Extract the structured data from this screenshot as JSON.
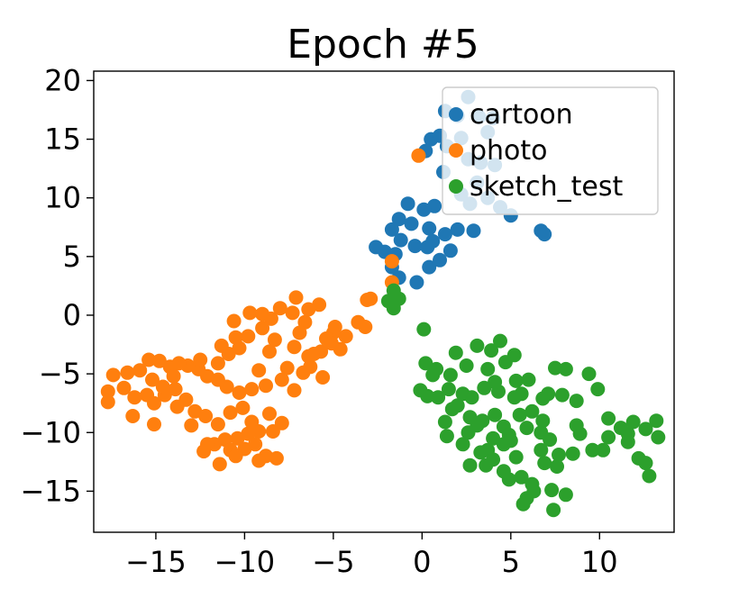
{
  "chart_data": {
    "type": "scatter",
    "title": "Epoch #5",
    "xlabel": "",
    "ylabel": "",
    "xlim": [
      -18.5,
      14.2
    ],
    "ylim": [
      -18.5,
      20.8
    ],
    "xticks": [
      -15,
      -10,
      -5,
      0,
      5,
      10
    ],
    "xtick_labels": [
      "−15",
      "−10",
      "−5",
      "0",
      "5",
      "10"
    ],
    "yticks": [
      -15,
      -10,
      -5,
      0,
      5,
      10,
      15,
      20
    ],
    "ytick_labels": [
      "−15",
      "−10",
      "−5",
      "0",
      "5",
      "10",
      "15",
      "20"
    ],
    "grid": false,
    "legend_position": "upper-right",
    "series": [
      {
        "name": "cartoon",
        "color": "#1f77b4",
        "points": [
          [
            2.6,
            18.6
          ],
          [
            1.3,
            17.4
          ],
          [
            2.0,
            17.0
          ],
          [
            3.2,
            16.9
          ],
          [
            4.0,
            16.8
          ],
          [
            0.5,
            15.0
          ],
          [
            1.0,
            15.3
          ],
          [
            2.2,
            15.1
          ],
          [
            3.7,
            15.6
          ],
          [
            0.2,
            14.0
          ],
          [
            1.4,
            14.4
          ],
          [
            2.6,
            13.3
          ],
          [
            3.3,
            13.0
          ],
          [
            4.1,
            12.8
          ],
          [
            1.2,
            12.2
          ],
          [
            3.1,
            11.3
          ],
          [
            2.2,
            10.3
          ],
          [
            3.7,
            10.0
          ],
          [
            4.4,
            9.2
          ],
          [
            5.0,
            8.5
          ],
          [
            2.7,
            9.5
          ],
          [
            0.7,
            9.3
          ],
          [
            -0.8,
            9.5
          ],
          [
            0.1,
            9.0
          ],
          [
            -1.3,
            8.2
          ],
          [
            -0.6,
            7.8
          ],
          [
            -1.7,
            7.3
          ],
          [
            -1.2,
            6.4
          ],
          [
            0.4,
            7.4
          ],
          [
            1.3,
            6.9
          ],
          [
            2.0,
            7.3
          ],
          [
            2.9,
            7.2
          ],
          [
            -2.1,
            5.4
          ],
          [
            -2.6,
            5.8
          ],
          [
            -1.5,
            5.2
          ],
          [
            -0.4,
            5.9
          ],
          [
            0.3,
            5.8
          ],
          [
            0.6,
            6.3
          ],
          [
            -1.7,
            4.1
          ],
          [
            0.4,
            4.1
          ],
          [
            1.0,
            4.7
          ],
          [
            1.6,
            5.5
          ],
          [
            -0.3,
            2.8
          ],
          [
            -1.3,
            3.2
          ],
          [
            6.7,
            7.2
          ],
          [
            6.9,
            6.9
          ]
        ]
      },
      {
        "name": "photo",
        "color": "#ff7f0e",
        "points": [
          [
            -0.2,
            13.6
          ],
          [
            -1.7,
            4.6
          ],
          [
            -1.7,
            2.8
          ],
          [
            -2.9,
            1.4
          ],
          [
            -3.1,
            1.3
          ],
          [
            -5.0,
            -1.5
          ],
          [
            -5.4,
            -2.0
          ],
          [
            -5.7,
            -3.1
          ],
          [
            -6.4,
            -3.5
          ],
          [
            -7.1,
            1.5
          ],
          [
            -7.3,
            0.2
          ],
          [
            -6.6,
            -0.6
          ],
          [
            -5.8,
            0.9
          ],
          [
            -8.0,
            0.6
          ],
          [
            -8.5,
            -0.3
          ],
          [
            -9.0,
            -1.1
          ],
          [
            -9.8,
            -1.8
          ],
          [
            -10.3,
            -2.8
          ],
          [
            -10.9,
            -3.3
          ],
          [
            -11.5,
            -4.1
          ],
          [
            -9.7,
            0.2
          ],
          [
            -10.6,
            -0.5
          ],
          [
            -8.3,
            -2.1
          ],
          [
            -8.6,
            -3.1
          ],
          [
            -9.2,
            -4.7
          ],
          [
            -7.6,
            -4.5
          ],
          [
            -7.2,
            -6.4
          ],
          [
            -6.3,
            -4.4
          ],
          [
            -5.6,
            -5.3
          ],
          [
            -4.6,
            -2.9
          ],
          [
            -3.6,
            -0.6
          ],
          [
            -3.2,
            -1.0
          ],
          [
            -6.1,
            -3.3
          ],
          [
            -6.7,
            -4.9
          ],
          [
            -7.9,
            -5.5
          ],
          [
            -8.8,
            -6.0
          ],
          [
            -9.6,
            -6.3
          ],
          [
            -10.3,
            -6.6
          ],
          [
            -11.0,
            -6.1
          ],
          [
            -11.5,
            -5.5
          ],
          [
            -12.1,
            -5.2
          ],
          [
            -12.6,
            -4.6
          ],
          [
            -13.2,
            -4.3
          ],
          [
            -13.7,
            -4.1
          ],
          [
            -14.2,
            -4.4
          ],
          [
            -14.8,
            -3.9
          ],
          [
            -15.4,
            -3.8
          ],
          [
            -15.9,
            -4.7
          ],
          [
            -16.6,
            -4.9
          ],
          [
            -17.4,
            -5.1
          ],
          [
            -17.7,
            -6.5
          ],
          [
            -16.8,
            -6.2
          ],
          [
            -16.2,
            -7.0
          ],
          [
            -15.5,
            -6.8
          ],
          [
            -15.1,
            -7.5
          ],
          [
            -14.5,
            -6.8
          ],
          [
            -13.9,
            -6.3
          ],
          [
            -13.3,
            -7.2
          ],
          [
            -12.8,
            -8.2
          ],
          [
            -13.8,
            -7.8
          ],
          [
            -12.2,
            -8.6
          ],
          [
            -11.5,
            -9.3
          ],
          [
            -10.8,
            -8.3
          ],
          [
            -10.1,
            -7.9
          ],
          [
            -9.6,
            -9.1
          ],
          [
            -8.6,
            -8.4
          ],
          [
            -7.9,
            -9.2
          ],
          [
            -8.4,
            -9.9
          ],
          [
            -9.2,
            -9.9
          ],
          [
            -9.8,
            -10.1
          ],
          [
            -10.4,
            -10.5
          ],
          [
            -11.1,
            -10.6
          ],
          [
            -11.7,
            -11.0
          ],
          [
            -10.8,
            -11.5
          ],
          [
            -10.0,
            -11.4
          ],
          [
            -9.4,
            -11.0
          ],
          [
            -8.8,
            -12.0
          ],
          [
            -8.2,
            -12.2
          ],
          [
            -9.2,
            -12.4
          ],
          [
            -10.5,
            -12.0
          ],
          [
            -11.4,
            -12.7
          ],
          [
            -12.1,
            -11.0
          ],
          [
            -12.3,
            -11.6
          ],
          [
            -15.1,
            -9.3
          ],
          [
            -17.7,
            -7.4
          ],
          [
            -16.3,
            -8.6
          ],
          [
            -13.0,
            -9.4
          ],
          [
            -14.6,
            -6.1
          ],
          [
            -15.2,
            -5.5
          ],
          [
            -14.0,
            -5.2
          ],
          [
            -12.5,
            -3.8
          ],
          [
            -11.3,
            -2.6
          ],
          [
            -10.5,
            -1.9
          ],
          [
            -9.0,
            0.1
          ],
          [
            -6.4,
            0.5
          ],
          [
            -7.2,
            -2.7
          ],
          [
            -4.9,
            -1.0
          ],
          [
            -4.3,
            -1.8
          ],
          [
            -5.1,
            -2.4
          ],
          [
            -6.9,
            -1.5
          ]
        ]
      },
      {
        "name": "sketch_test",
        "color": "#2ca02c",
        "points": [
          [
            -1.6,
            2.1
          ],
          [
            -1.3,
            1.4
          ],
          [
            -1.6,
            0.6
          ],
          [
            -1.9,
            1.2
          ],
          [
            0.1,
            -1.2
          ],
          [
            1.9,
            -3.2
          ],
          [
            3.1,
            -2.6
          ],
          [
            3.9,
            -3.0
          ],
          [
            4.4,
            -2.2
          ],
          [
            5.2,
            -3.4
          ],
          [
            4.7,
            -4.0
          ],
          [
            3.7,
            -4.6
          ],
          [
            2.5,
            -4.3
          ],
          [
            1.6,
            -5.1
          ],
          [
            0.8,
            -4.6
          ],
          [
            0.2,
            -4.1
          ],
          [
            0.6,
            -5.1
          ],
          [
            -0.1,
            -6.4
          ],
          [
            0.3,
            -6.9
          ],
          [
            0.9,
            -7.0
          ],
          [
            1.5,
            -6.3
          ],
          [
            2.3,
            -6.7
          ],
          [
            2.8,
            -7.0
          ],
          [
            3.5,
            -6.2
          ],
          [
            4.3,
            -6.5
          ],
          [
            5.2,
            -7.0
          ],
          [
            5.6,
            -6.7
          ],
          [
            6.0,
            -5.5
          ],
          [
            5.3,
            -5.6
          ],
          [
            4.1,
            -5.7
          ],
          [
            2.0,
            -7.7
          ],
          [
            1.3,
            -9.1
          ],
          [
            2.7,
            -8.7
          ],
          [
            3.4,
            -9.0
          ],
          [
            4.1,
            -8.5
          ],
          [
            4.6,
            -9.5
          ],
          [
            5.5,
            -8.5
          ],
          [
            6.2,
            -8.2
          ],
          [
            6.8,
            -7.1
          ],
          [
            7.1,
            -6.7
          ],
          [
            7.5,
            -4.5
          ],
          [
            8.1,
            -4.6
          ],
          [
            9.4,
            -5.0
          ],
          [
            9.9,
            -6.3
          ],
          [
            8.7,
            -7.3
          ],
          [
            7.9,
            -6.8
          ],
          [
            6.8,
            -9.0
          ],
          [
            7.2,
            -10.6
          ],
          [
            6.7,
            -11.5
          ],
          [
            7.7,
            -11.9
          ],
          [
            8.5,
            -11.8
          ],
          [
            8.7,
            -9.4
          ],
          [
            8.9,
            -10.1
          ],
          [
            10.5,
            -8.8
          ],
          [
            11.2,
            -9.6
          ],
          [
            11.6,
            -10.1
          ],
          [
            11.9,
            -9.1
          ],
          [
            12.6,
            -9.7
          ],
          [
            13.2,
            -9.0
          ],
          [
            13.3,
            -10.4
          ],
          [
            12.6,
            -12.6
          ],
          [
            12.2,
            -12.2
          ],
          [
            12.8,
            -13.7
          ],
          [
            11.6,
            -10.8
          ],
          [
            10.5,
            -10.4
          ],
          [
            10.2,
            -11.5
          ],
          [
            9.6,
            -11.5
          ],
          [
            4.6,
            -11.0
          ],
          [
            4.9,
            -10.2
          ],
          [
            4.0,
            -10.5
          ],
          [
            3.7,
            -11.5
          ],
          [
            3.6,
            -12.8
          ],
          [
            5.3,
            -12.1
          ],
          [
            4.6,
            -13.3
          ],
          [
            3.3,
            -11.7
          ],
          [
            2.3,
            -11.0
          ],
          [
            1.4,
            -10.3
          ],
          [
            3.1,
            -9.4
          ],
          [
            2.7,
            -12.8
          ],
          [
            4.9,
            -14.0
          ],
          [
            5.6,
            -13.8
          ],
          [
            6.2,
            -14.4
          ],
          [
            6.9,
            -12.6
          ],
          [
            7.6,
            -12.9
          ],
          [
            6.3,
            -15.0
          ],
          [
            5.9,
            -15.6
          ],
          [
            5.7,
            -16.1
          ],
          [
            7.3,
            -14.9
          ],
          [
            8.1,
            -15.3
          ],
          [
            7.4,
            -16.6
          ],
          [
            4.0,
            -12.3
          ],
          [
            5.0,
            -10.7
          ],
          [
            6.7,
            -10.0
          ],
          [
            2.6,
            -10.0
          ],
          [
            1.7,
            -8.0
          ],
          [
            5.9,
            -9.6
          ]
        ]
      }
    ]
  }
}
